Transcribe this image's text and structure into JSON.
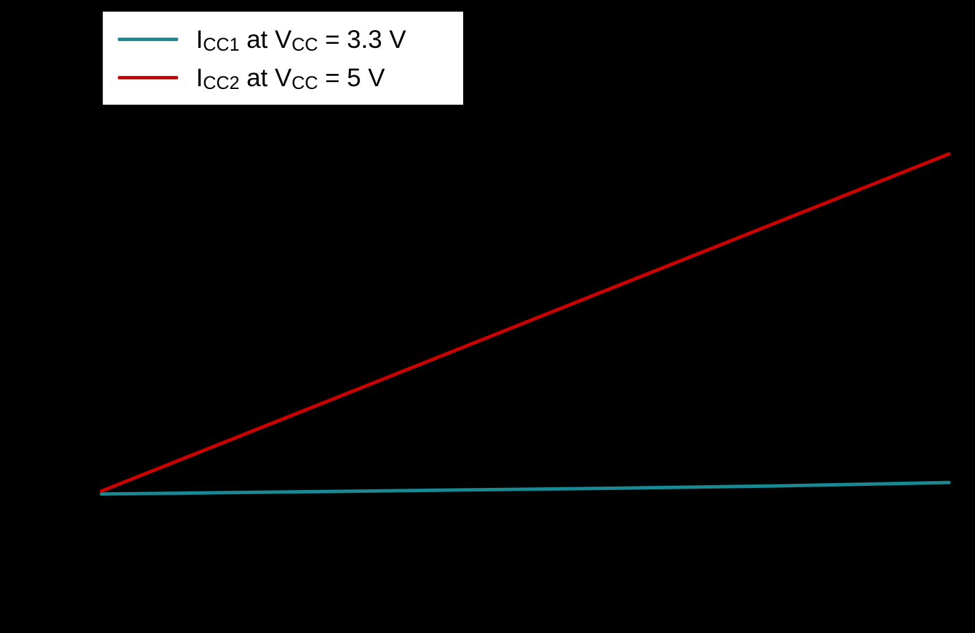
{
  "colors": {
    "background": "#000000",
    "legend_background": "#ffffff",
    "series1": "#178a94",
    "series2": "#cc0000"
  },
  "legend": {
    "items": [
      {
        "i": "I",
        "i_sub": "CC1",
        "mid": " at V",
        "v_sub": "CC",
        "end": " = 3.3 V",
        "color": "#178a94"
      },
      {
        "i": "I",
        "i_sub": "CC2",
        "mid": " at V",
        "v_sub": "CC",
        "end": " = 5 V",
        "color": "#cc0000"
      }
    ]
  },
  "chart_data": {
    "type": "line",
    "title": "",
    "xlabel": "",
    "ylabel": "",
    "xlim": [
      0,
      100
    ],
    "ylim": [
      0,
      100
    ],
    "grid": false,
    "legend_position": "top-left",
    "series": [
      {
        "name": "ICC1 at VCC = 3.3 V",
        "color": "#178a94",
        "x": [
          0,
          20,
          40,
          60,
          80,
          100
        ],
        "y": [
          18.3,
          18.7,
          19.1,
          19.5,
          20.0,
          20.7
        ]
      },
      {
        "name": "ICC2 at VCC = 5 V",
        "color": "#cc0000",
        "x": [
          0,
          100
        ],
        "y": [
          18.9,
          89.3
        ]
      }
    ]
  }
}
